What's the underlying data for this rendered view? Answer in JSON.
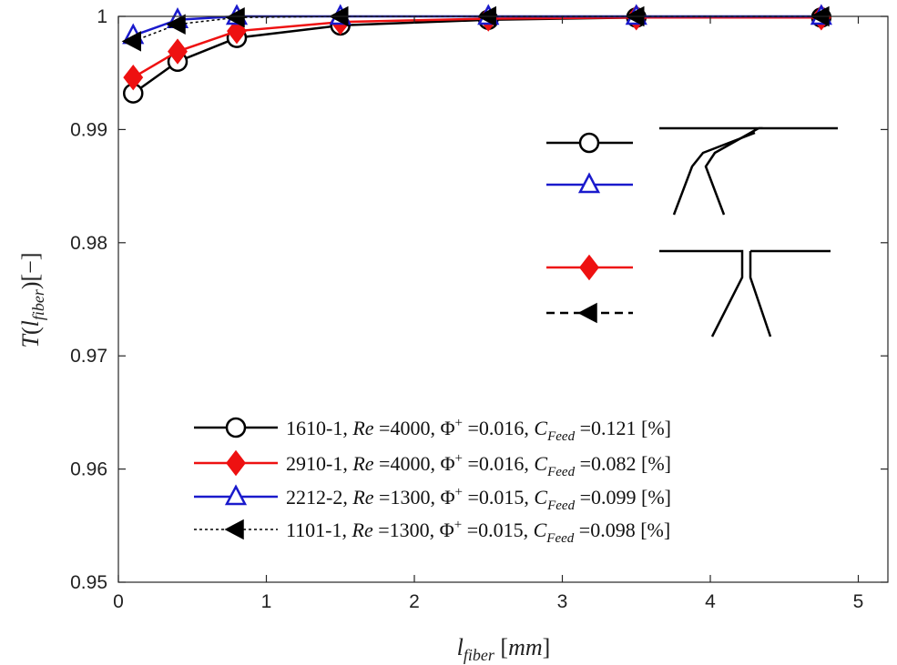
{
  "chart_data": {
    "type": "line",
    "xlabel": "l_fiber [mm]",
    "ylabel": "T(l_fiber)[−]",
    "xlim": [
      0,
      5.2
    ],
    "ylim": [
      0.95,
      1.0
    ],
    "x_ticks": [
      0,
      1,
      2,
      3,
      4,
      5
    ],
    "y_ticks": [
      0.95,
      0.96,
      0.97,
      0.98,
      0.99,
      1.0
    ],
    "y_tick_labels": [
      "0.95",
      "0.96",
      "0.97",
      "0.98",
      "0.99",
      "1"
    ],
    "grid": false,
    "legend_position": "bottom-right",
    "series": [
      {
        "name": "1610-1, Re =4000,  Φ+ =0.016,  C_Feed =0.121 [%]",
        "legend_parts": [
          "1610-1, ",
          "Re",
          " =4000,  Φ",
          "+",
          " =0.016,  ",
          "C",
          "Feed",
          " =0.121 [%]"
        ],
        "color": "#000000",
        "marker": "circle",
        "line_style": "solid",
        "x": [
          0.1,
          0.4,
          0.8,
          1.5,
          2.5,
          3.5,
          4.75
        ],
        "y": [
          0.9932,
          0.996,
          0.9981,
          0.9992,
          0.9997,
          0.9999,
          0.9999
        ]
      },
      {
        "name": "2910-1, Re =4000,  Φ+ =0.016,  C_Feed =0.082 [%]",
        "legend_parts": [
          "2910-1, ",
          "Re",
          " =4000,  Φ",
          "+",
          " =0.016,  ",
          "C",
          "Feed",
          " =0.082 [%]"
        ],
        "color": "#ee1111",
        "marker": "diamond",
        "line_style": "solid",
        "x": [
          0.1,
          0.4,
          0.8,
          1.5,
          2.5,
          3.5,
          4.75
        ],
        "y": [
          0.9946,
          0.9969,
          0.9987,
          0.9995,
          0.9998,
          0.9999,
          0.9999
        ]
      },
      {
        "name": "2212-2, Re =1300,  Φ+ =0.015,  C_Feed =0.099 [%]",
        "legend_parts": [
          "2212-2, ",
          "Re",
          " =1300,  Φ",
          "+",
          " =0.015,  ",
          "C",
          "Feed",
          " =0.099 [%]"
        ],
        "color": "#1a1acc",
        "marker": "triangle-up",
        "line_style": "solid",
        "x": [
          0.1,
          0.4,
          0.8,
          1.5,
          2.5,
          3.5,
          4.75
        ],
        "y": [
          0.9983,
          0.9997,
          1.0,
          1.0,
          1.0,
          1.0,
          1.0
        ]
      },
      {
        "name": "1101-1, Re =1300,  Φ+ =0.015,  C_Feed =0.098 [%]",
        "legend_parts": [
          "1101-1, ",
          "Re",
          " =1300,  Φ",
          "+",
          " =0.015,  ",
          "C",
          "Feed",
          " =0.098 [%]"
        ],
        "color": "#000000",
        "marker": "triangle-left",
        "line_style": "dotted",
        "x": [
          0.1,
          0.4,
          0.8,
          1.5,
          2.5,
          3.5,
          4.75
        ],
        "y": [
          0.9978,
          0.9993,
          0.9999,
          1.0,
          1.0,
          1.0,
          1.0
        ]
      }
    ],
    "inset_legend": {
      "groups": [
        {
          "geometry": "inclined-nozzle",
          "series_index": [
            0,
            2
          ]
        },
        {
          "geometry": "straight-nozzle",
          "series_index": [
            1,
            3
          ]
        }
      ]
    }
  }
}
